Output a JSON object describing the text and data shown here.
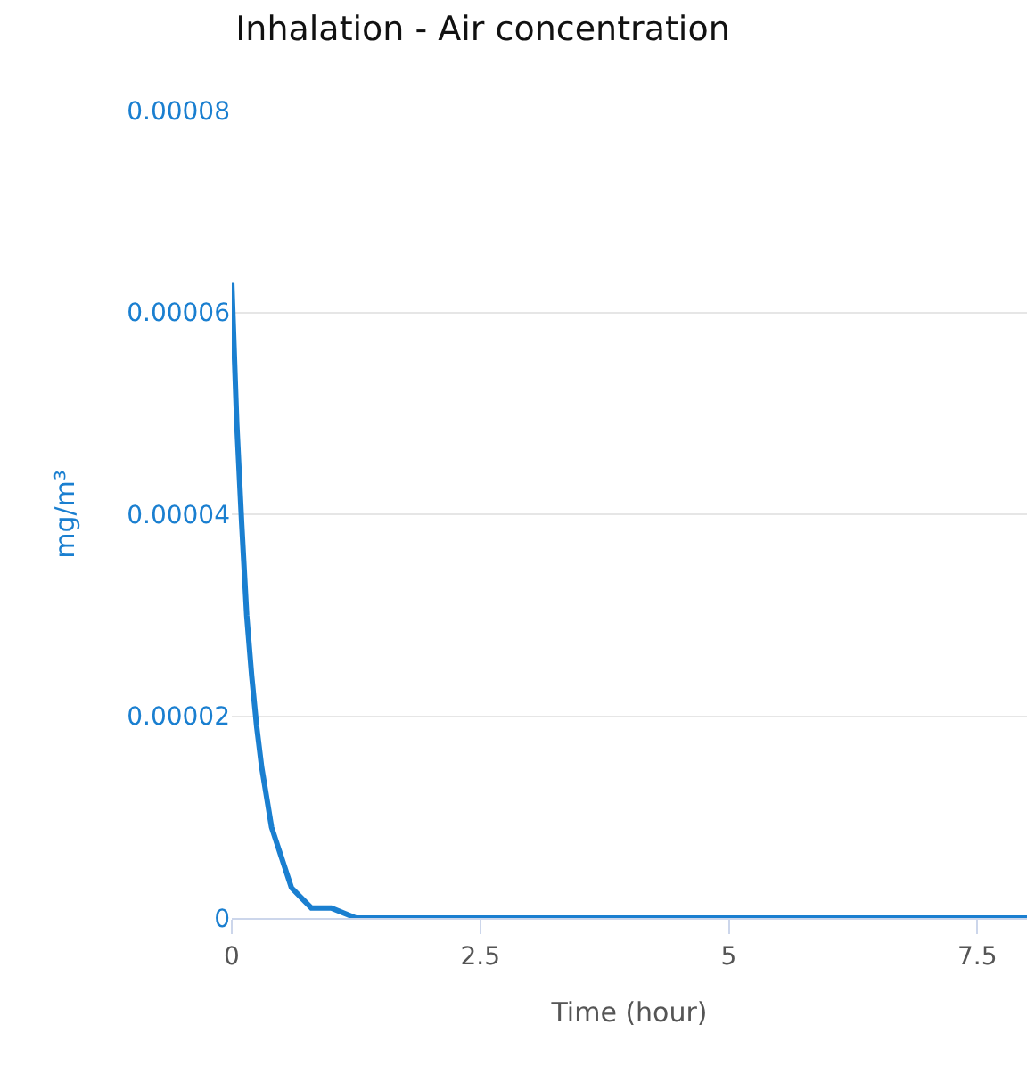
{
  "chart_data": {
    "type": "line",
    "title": "Inhalation - Air concentration",
    "xlabel": "Time (hour)",
    "ylabel": "mg/m³",
    "x": [
      0,
      0.05,
      0.1,
      0.15,
      0.2,
      0.25,
      0.3,
      0.4,
      0.5,
      0.6,
      0.7,
      0.8,
      1.0,
      1.25,
      1.5,
      2,
      3,
      4,
      5,
      6,
      7,
      8
    ],
    "series": [
      {
        "color": "#1a7fd0",
        "values": [
          6.3e-05,
          4.9e-05,
          3.9e-05,
          3e-05,
          2.4e-05,
          1.9e-05,
          1.5e-05,
          9e-06,
          6e-06,
          3e-06,
          2e-06,
          1e-06,
          1e-06,
          0,
          0,
          0,
          0,
          0,
          0,
          0,
          0,
          0
        ]
      }
    ],
    "xlim": [
      0,
      8
    ],
    "xticks": [
      0,
      2.5,
      5,
      7.5
    ],
    "ylim": [
      0,
      8e-05
    ],
    "yticks": [
      {
        "value": 0,
        "label": "0"
      },
      {
        "value": 2e-05,
        "label": "0.00002"
      },
      {
        "value": 4e-05,
        "label": "0.00004"
      },
      {
        "value": 6e-05,
        "label": "0.00006"
      },
      {
        "value": 8e-05,
        "label": "0.00008"
      }
    ],
    "grid": "y",
    "marker": "none",
    "line_style": "solid"
  }
}
